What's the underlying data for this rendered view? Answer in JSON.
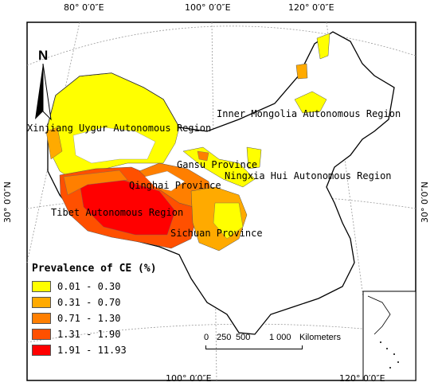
{
  "graticule": {
    "top": [
      "80° 0′0″E",
      "100° 0′0″E",
      "120° 0′0″E"
    ],
    "bottom": [
      "100° 0′0″E",
      "120° 0′0″E"
    ],
    "left": [
      "30° 0′0″N"
    ],
    "right": [
      "30° 0′0″N"
    ]
  },
  "north_arrow": "N",
  "regions": {
    "xinjiang": "Xinjiang Uygur Autonomous Region",
    "inner_mongolia": "Inner Mongolia Autonomous Region",
    "gansu": "Gansu Province",
    "ningxia": "Ningxia Hui Autonomous Region",
    "qinghai": "Qinghai Province",
    "tibet": "Tibet Autonomous Region",
    "sichuan": "Sichuan Province"
  },
  "legend": {
    "title": "Prevalence of CE (%)",
    "items": [
      {
        "label": "0.01 - 0.30",
        "color": "#ffff00"
      },
      {
        "label": "0.31 - 0.70",
        "color": "#ffaa00"
      },
      {
        "label": "0.71 - 1.30",
        "color": "#ff7f00"
      },
      {
        "label": "1.31 - 1.90",
        "color": "#ff5000"
      },
      {
        "label": "1.91 - 11.93",
        "color": "#ff0000"
      }
    ]
  },
  "scalebar": {
    "labels": [
      "0",
      "250",
      "500",
      "1 000",
      "Kilometers"
    ]
  }
}
